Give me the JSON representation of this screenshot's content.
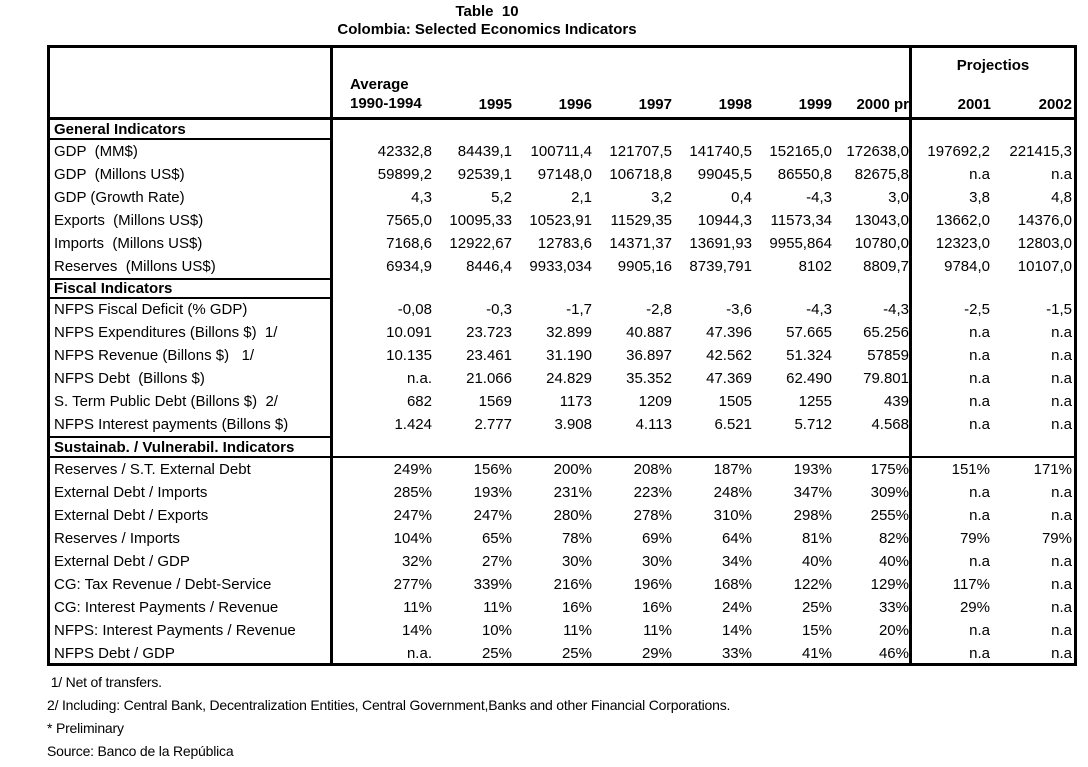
{
  "title": {
    "line1": "Table  10",
    "line2": "Colombia: Selected Economics Indicators"
  },
  "header": {
    "average_label": "Average",
    "columns": [
      "1990-1994",
      "1995",
      "1996",
      "1997",
      "1998",
      "1999",
      "2000 pr"
    ],
    "projections_label": "Projectios",
    "projection_columns": [
      "2001",
      "2002"
    ]
  },
  "table": {
    "sections": [
      {
        "label": "General Indicators",
        "rows": [
          {
            "label": "GDP  (MM$)",
            "values": [
              "42332,8",
              "84439,1",
              "100711,4",
              "121707,5",
              "141740,5",
              "152165,0",
              "172638,0",
              "197692,2",
              "221415,3"
            ]
          },
          {
            "label": "GDP  (Millons US$)",
            "values": [
              "59899,2",
              "92539,1",
              "97148,0",
              "106718,8",
              "99045,5",
              "86550,8",
              "82675,8",
              "n.a",
              "n.a"
            ]
          },
          {
            "label": "GDP (Growth Rate)",
            "values": [
              "4,3",
              "5,2",
              "2,1",
              "3,2",
              "0,4",
              "-4,3",
              "3,0",
              "3,8",
              "4,8"
            ]
          },
          {
            "label": "Exports  (Millons US$)",
            "values": [
              "7565,0",
              "10095,33",
              "10523,91",
              "11529,35",
              "10944,3",
              "11573,34",
              "13043,0",
              "13662,0",
              "14376,0"
            ]
          },
          {
            "label": "Imports  (Millons US$)",
            "values": [
              "7168,6",
              "12922,67",
              "12783,6",
              "14371,37",
              "13691,93",
              "9955,864",
              "10780,0",
              "12323,0",
              "12803,0"
            ]
          },
          {
            "label": "Reserves  (Millons US$)",
            "values": [
              "6934,9",
              "8446,4",
              "9933,034",
              "9905,16",
              "8739,791",
              "8102",
              "8809,7",
              "9784,0",
              "10107,0"
            ]
          }
        ]
      },
      {
        "label": "Fiscal Indicators",
        "rows": [
          {
            "label": "NFPS Fiscal Deficit (% GDP)",
            "values": [
              "-0,08",
              "-0,3",
              "-1,7",
              "-2,8",
              "-3,6",
              "-4,3",
              "-4,3",
              "-2,5",
              "-1,5"
            ]
          },
          {
            "label": "NFPS Expenditures (Billons $)  1/",
            "values": [
              "10.091",
              "23.723",
              "32.899",
              "40.887",
              "47.396",
              "57.665",
              "65.256",
              "n.a",
              "n.a"
            ]
          },
          {
            "label": "NFPS Revenue (Billons $)   1/",
            "values": [
              "10.135",
              "23.461",
              "31.190",
              "36.897",
              "42.562",
              "51.324",
              "57859",
              "n.a",
              "n.a"
            ]
          },
          {
            "label": "NFPS Debt  (Billons $)",
            "values": [
              "n.a.",
              "21.066",
              "24.829",
              "35.352",
              "47.369",
              "62.490",
              "79.801",
              "n.a",
              "n.a"
            ]
          },
          {
            "label": "S. Term Public Debt (Billons $)  2/",
            "values": [
              "682",
              "1569",
              "1173",
              "1209",
              "1505",
              "1255",
              "439",
              "n.a",
              "n.a"
            ]
          },
          {
            "label": "NFPS Interest payments (Billons $)",
            "values": [
              "1.424",
              "2.777",
              "3.908",
              "4.113",
              "6.521",
              "5.712",
              "4.568",
              "n.a",
              "n.a"
            ]
          }
        ]
      },
      {
        "label": "Sustainab. / Vulnerabil. Indicators",
        "rows": [
          {
            "label": "Reserves / S.T. External Debt",
            "values": [
              "249%",
              "156%",
              "200%",
              "208%",
              "187%",
              "193%",
              "175%",
              "151%",
              "171%"
            ]
          },
          {
            "label": "External Debt / Imports",
            "values": [
              "285%",
              "193%",
              "231%",
              "223%",
              "248%",
              "347%",
              "309%",
              "n.a",
              "n.a"
            ]
          },
          {
            "label": "External Debt / Exports",
            "values": [
              "247%",
              "247%",
              "280%",
              "278%",
              "310%",
              "298%",
              "255%",
              "n.a",
              "n.a"
            ]
          },
          {
            "label": "Reserves / Imports",
            "values": [
              "104%",
              "65%",
              "78%",
              "69%",
              "64%",
              "81%",
              "82%",
              "79%",
              "79%"
            ]
          },
          {
            "label": "External Debt / GDP",
            "values": [
              "32%",
              "27%",
              "30%",
              "30%",
              "34%",
              "40%",
              "40%",
              "n.a",
              "n.a"
            ]
          },
          {
            "label": "CG: Tax Revenue / Debt-Service",
            "values": [
              "277%",
              "339%",
              "216%",
              "196%",
              "168%",
              "122%",
              "129%",
              "117%",
              "n.a"
            ]
          },
          {
            "label": "CG: Interest Payments / Revenue",
            "values": [
              "11%",
              "11%",
              "16%",
              "16%",
              "24%",
              "25%",
              "33%",
              "29%",
              "n.a"
            ]
          },
          {
            "label": "NFPS: Interest Payments / Revenue",
            "values": [
              "14%",
              "10%",
              "11%",
              "11%",
              "14%",
              "15%",
              "20%",
              "n.a",
              "n.a"
            ]
          },
          {
            "label": "NFPS Debt / GDP",
            "values": [
              "n.a.",
              "25%",
              "25%",
              "29%",
              "33%",
              "41%",
              "46%",
              "n.a",
              "n.a"
            ]
          }
        ]
      }
    ]
  },
  "footnotes": [
    " 1/ Net of transfers.",
    "2/ Including: Central Bank, Decentralization Entities, Central Government,Banks and other Financial Corporations.",
    "* Preliminary",
    "Source: Banco de la República"
  ]
}
